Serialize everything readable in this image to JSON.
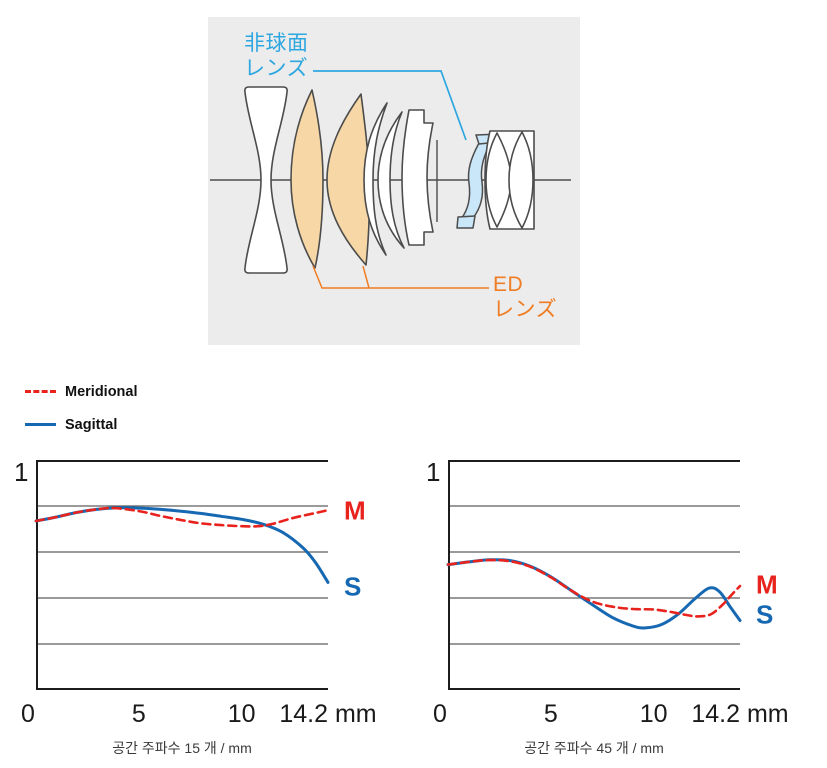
{
  "colors": {
    "accent_blue": "#2ea7e0",
    "accent_orange": "#f07d23",
    "meridional_red": "#e8231e",
    "sagittal_blue": "#1668b2",
    "panel_bg": "#ececec",
    "grid_gray": "#5d5d5d",
    "axis_black": "#1c1c1c",
    "ed_fill": "#f6d7a5",
    "asph_fill": "#c9e7f8"
  },
  "lens_diagram": {
    "aspherical_label_line1": "非球面",
    "aspherical_label_line2": "レンズ",
    "ed_label_line1": "ED",
    "ed_label_line2": "レンズ"
  },
  "legend": {
    "items": [
      {
        "label": "Meridional",
        "style": "dashed",
        "color_key": "meridional_red"
      },
      {
        "label": "Sagittal",
        "style": "solid",
        "color_key": "sagittal_blue"
      }
    ]
  },
  "chart_data": [
    {
      "type": "line",
      "caption": "공간 주파수 15 개 / mm",
      "xlim": [
        0,
        14.2
      ],
      "ylim": [
        0,
        1
      ],
      "y_top_label": "1",
      "gridlines": [
        0.2,
        0.4,
        0.6,
        0.8
      ],
      "grid": "horizontal-only",
      "legend_position": "outside-top-left",
      "xticks": [
        {
          "v": 0,
          "label": "0"
        },
        {
          "v": 5,
          "label": "5"
        },
        {
          "v": 10,
          "label": "10"
        },
        {
          "v": 14.2,
          "label": "14.2 mm"
        }
      ],
      "series": [
        {
          "name": "Sagittal",
          "style": "solid",
          "color_key": "sagittal_blue",
          "points": [
            [
              0,
              0.735
            ],
            [
              1,
              0.752
            ],
            [
              2,
              0.772
            ],
            [
              3,
              0.786
            ],
            [
              4,
              0.792
            ],
            [
              5,
              0.791
            ],
            [
              6,
              0.786
            ],
            [
              7,
              0.778
            ],
            [
              8,
              0.768
            ],
            [
              9,
              0.755
            ],
            [
              10,
              0.742
            ],
            [
              11,
              0.722
            ],
            [
              12,
              0.685
            ],
            [
              13,
              0.617
            ],
            [
              13.6,
              0.553
            ],
            [
              14.2,
              0.468
            ]
          ]
        },
        {
          "name": "Meridional",
          "style": "dashed",
          "color_key": "meridional_red",
          "points": [
            [
              0,
              0.735
            ],
            [
              1,
              0.752
            ],
            [
              2,
              0.772
            ],
            [
              3,
              0.786
            ],
            [
              3.8,
              0.791
            ],
            [
              5,
              0.778
            ],
            [
              6,
              0.758
            ],
            [
              7,
              0.74
            ],
            [
              8,
              0.725
            ],
            [
              9,
              0.717
            ],
            [
              10,
              0.712
            ],
            [
              10.8,
              0.712
            ],
            [
              11.5,
              0.722
            ],
            [
              12.5,
              0.748
            ],
            [
              13.5,
              0.768
            ],
            [
              14.2,
              0.782
            ]
          ]
        }
      ],
      "end_labels": [
        {
          "text": "M",
          "y": 0.78,
          "color_key": "meridional_red"
        },
        {
          "text": "S",
          "y": 0.45,
          "color_key": "sagittal_blue"
        }
      ]
    },
    {
      "type": "line",
      "caption": "공간 주파수 45 개 / mm",
      "xlim": [
        0,
        14.2
      ],
      "ylim": [
        0,
        1
      ],
      "y_top_label": "1",
      "gridlines": [
        0.2,
        0.4,
        0.6,
        0.8
      ],
      "grid": "horizontal-only",
      "legend_position": "outside-top-left",
      "xticks": [
        {
          "v": 0,
          "label": "0"
        },
        {
          "v": 5,
          "label": "5"
        },
        {
          "v": 10,
          "label": "10"
        },
        {
          "v": 14.2,
          "label": "14.2 mm"
        }
      ],
      "series": [
        {
          "name": "Sagittal",
          "style": "solid",
          "color_key": "sagittal_blue",
          "points": [
            [
              0,
              0.545
            ],
            [
              1,
              0.557
            ],
            [
              2,
              0.566
            ],
            [
              3,
              0.563
            ],
            [
              4,
              0.538
            ],
            [
              5,
              0.492
            ],
            [
              6,
              0.432
            ],
            [
              7,
              0.372
            ],
            [
              8,
              0.315
            ],
            [
              9,
              0.278
            ],
            [
              9.6,
              0.27
            ],
            [
              10.4,
              0.285
            ],
            [
              11.2,
              0.33
            ],
            [
              12,
              0.396
            ],
            [
              12.7,
              0.443
            ],
            [
              13.2,
              0.428
            ],
            [
              13.7,
              0.365
            ],
            [
              14.2,
              0.302
            ]
          ]
        },
        {
          "name": "Meridional",
          "style": "dashed",
          "color_key": "meridional_red",
          "points": [
            [
              0,
              0.545
            ],
            [
              1,
              0.557
            ],
            [
              2,
              0.565
            ],
            [
              3,
              0.56
            ],
            [
              4,
              0.536
            ],
            [
              5,
              0.49
            ],
            [
              6,
              0.432
            ],
            [
              7,
              0.385
            ],
            [
              8,
              0.362
            ],
            [
              9,
              0.352
            ],
            [
              10,
              0.35
            ],
            [
              10.8,
              0.34
            ],
            [
              11.6,
              0.326
            ],
            [
              12.2,
              0.32
            ],
            [
              12.8,
              0.33
            ],
            [
              13.4,
              0.375
            ],
            [
              13.8,
              0.415
            ],
            [
              14.2,
              0.452
            ]
          ]
        }
      ],
      "end_labels": [
        {
          "text": "M",
          "y": 0.455,
          "color_key": "meridional_red"
        },
        {
          "text": "S",
          "y": 0.325,
          "color_key": "sagittal_blue"
        }
      ]
    }
  ]
}
